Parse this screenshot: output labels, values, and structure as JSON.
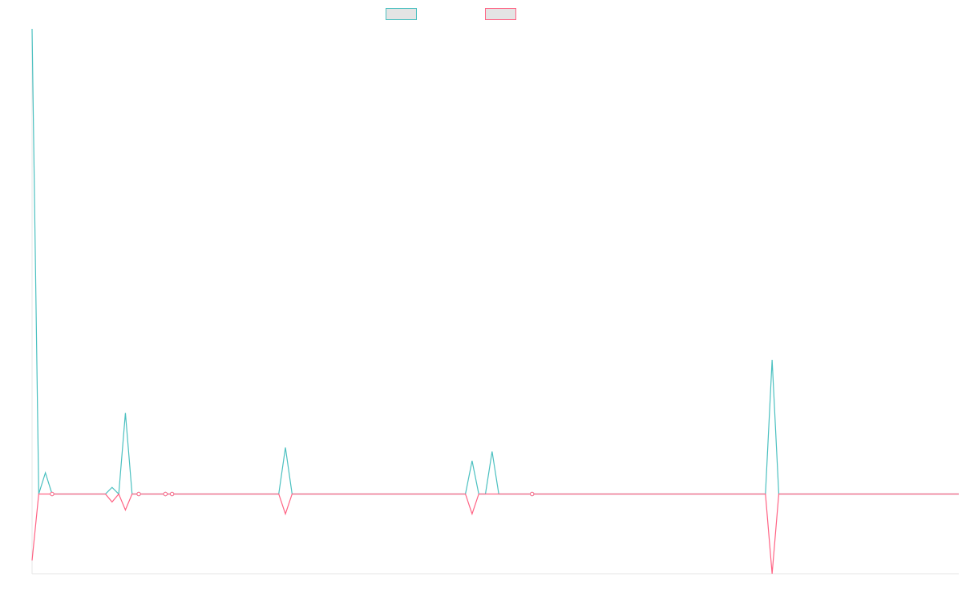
{
  "chart_data": {
    "type": "line",
    "title": "",
    "xlabel": "",
    "ylabel": "",
    "legend_position": "top-center",
    "grid": false,
    "ylim": [
      -60,
      350
    ],
    "x_count": 140,
    "series": [
      {
        "color": "#4bc0c0",
        "spikes": [
          [
            0,
            350
          ],
          [
            1,
            0
          ],
          [
            2,
            16
          ],
          [
            3,
            0
          ],
          [
            12,
            5
          ],
          [
            13,
            0
          ],
          [
            14,
            61
          ],
          [
            15,
            0
          ],
          [
            37,
            0
          ],
          [
            38,
            35
          ],
          [
            39,
            0
          ],
          [
            65,
            0
          ],
          [
            66,
            25
          ],
          [
            67,
            0
          ],
          [
            68,
            0
          ],
          [
            69,
            32
          ],
          [
            70,
            0
          ],
          [
            110,
            0
          ],
          [
            111,
            101
          ],
          [
            112,
            0
          ]
        ],
        "baseline": 0,
        "markers": [
          3,
          16,
          20,
          21,
          75
        ]
      },
      {
        "color": "#ff6384",
        "spikes": [
          [
            0,
            -50
          ],
          [
            1,
            0
          ],
          [
            2,
            0
          ],
          [
            11,
            0
          ],
          [
            12,
            -6
          ],
          [
            13,
            0
          ],
          [
            14,
            -12
          ],
          [
            15,
            0
          ],
          [
            37,
            0
          ],
          [
            38,
            -15
          ],
          [
            39,
            0
          ],
          [
            65,
            0
          ],
          [
            66,
            -15
          ],
          [
            67,
            0
          ],
          [
            110,
            0
          ],
          [
            111,
            -60
          ],
          [
            112,
            0
          ]
        ],
        "baseline": 0,
        "markers": [
          3,
          16,
          20,
          21,
          75
        ]
      }
    ]
  }
}
